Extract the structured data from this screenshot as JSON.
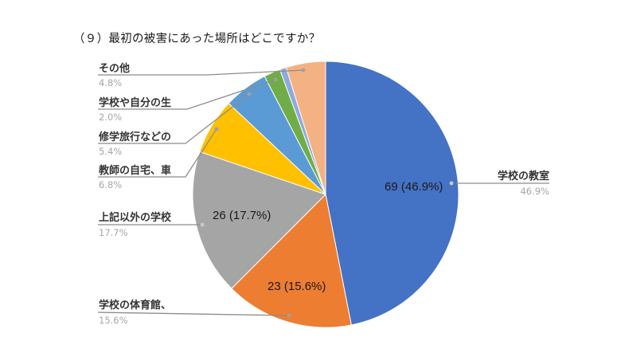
{
  "title": "（９）最初の被害にあった場所はどこですか？",
  "chart_data": {
    "type": "pie",
    "title": "（９）最初の被害にあった場所はどこですか？",
    "start_angle_deg": 0,
    "direction": "clockwise",
    "slices": [
      {
        "label": "学校の教室",
        "percent": 46.9,
        "count": 69,
        "data_label": "69 (46.9%)",
        "color": "#4472C4"
      },
      {
        "label": "学校の体育館、",
        "percent": 15.6,
        "count": 23,
        "data_label": "23 (15.6%)",
        "color": "#ED7D31"
      },
      {
        "label": "上記以外の学校",
        "percent": 17.7,
        "count": 26,
        "data_label": "26 (17.7%)",
        "color": "#A5A5A5"
      },
      {
        "label": "教師の自宅、車",
        "percent": 6.8,
        "color": "#FFC000"
      },
      {
        "label": "修学旅行などの",
        "percent": 5.4,
        "color": "#5B9BD5"
      },
      {
        "label": "学校や自分の生",
        "percent": 2.0,
        "color": "#70AD47"
      },
      {
        "label": "",
        "percent": 0.8,
        "color": "#8FAADC"
      },
      {
        "label": "その他",
        "percent": 4.8,
        "color": "#F4B183"
      }
    ],
    "legend": "none (leader-line labels)"
  },
  "labels": {
    "classroom": {
      "name": "学校の教室",
      "pct": "46.9%",
      "value": "69 (46.9%)"
    },
    "gym": {
      "name": "学校の体育館、",
      "pct": "15.6%",
      "value": "23 (15.6%)"
    },
    "other_school": {
      "name": "上記以外の学校",
      "pct": "17.7%",
      "value": "26 (17.7%)"
    },
    "teacher_home": {
      "name": "教師の自宅、車",
      "pct": "6.8%"
    },
    "school_trip": {
      "name": "修学旅行などの",
      "pct": "5.4%"
    },
    "school_life": {
      "name": "学校や自分の生",
      "pct": "2.0%"
    },
    "other": {
      "name": "その他",
      "pct": "4.8%"
    }
  }
}
